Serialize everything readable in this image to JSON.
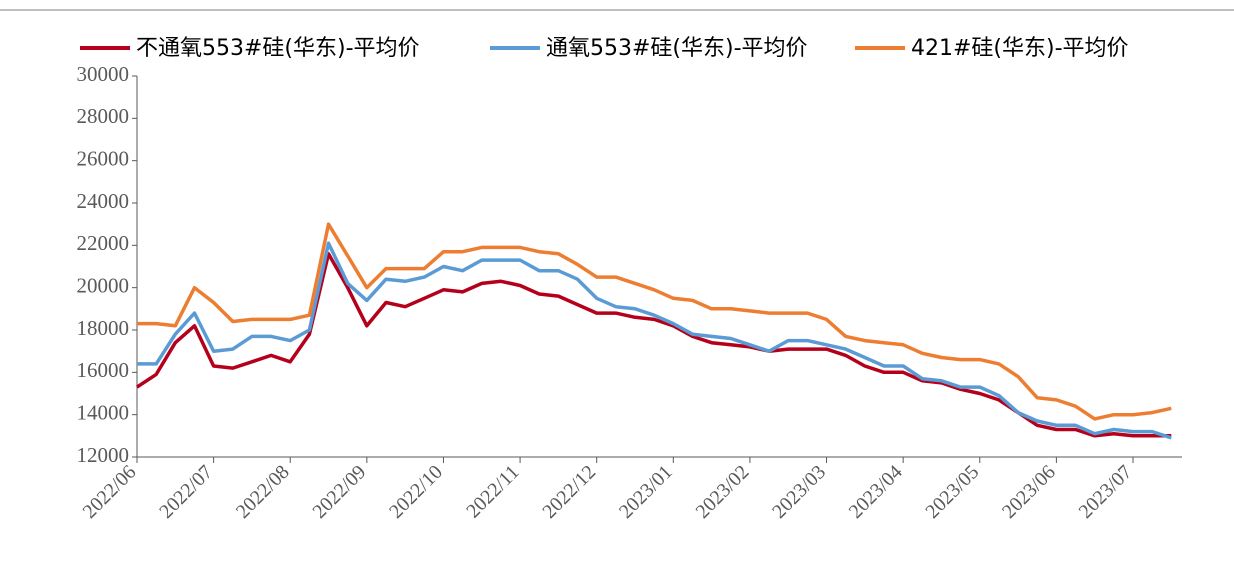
{
  "chart_data": {
    "type": "line",
    "categories": [
      "2022/06",
      null,
      null,
      null,
      "2022/07",
      null,
      null,
      null,
      "2022/08",
      null,
      null,
      null,
      "2022/09",
      null,
      null,
      null,
      "2022/10",
      null,
      null,
      null,
      "2022/11",
      null,
      null,
      null,
      "2022/12",
      null,
      null,
      null,
      "2023/01",
      null,
      null,
      null,
      "2023/02",
      null,
      null,
      null,
      "2023/03",
      null,
      null,
      null,
      "2023/04",
      null,
      null,
      null,
      "2023/05",
      null,
      null,
      null,
      "2023/06",
      null,
      null,
      null,
      "2023/07",
      null,
      null
    ],
    "series": [
      {
        "name": "不通氧553#硅(华东)-平均价",
        "color": "#b5001c",
        "values": [
          15300,
          15900,
          17400,
          18200,
          16300,
          16200,
          16500,
          16800,
          16500,
          17800,
          21600,
          20000,
          18200,
          19300,
          19100,
          19500,
          19900,
          19800,
          20200,
          20300,
          20100,
          19700,
          19600,
          19200,
          18800,
          18800,
          18600,
          18500,
          18200,
          17700,
          17400,
          17300,
          17200,
          17000,
          17100,
          17100,
          17100,
          16800,
          16300,
          16000,
          16000,
          15600,
          15500,
          15200,
          15000,
          14700,
          14100,
          13500,
          13300,
          13300,
          13000,
          13100,
          13000,
          13000,
          13000
        ]
      },
      {
        "name": "通氧553#硅(华东)-平均价",
        "color": "#5b9bd5",
        "values": [
          16400,
          16400,
          17800,
          18800,
          17000,
          17100,
          17700,
          17700,
          17500,
          18000,
          22100,
          20200,
          19400,
          20400,
          20300,
          20500,
          21000,
          20800,
          21300,
          21300,
          21300,
          20800,
          20800,
          20400,
          19500,
          19100,
          19000,
          18700,
          18300,
          17800,
          17700,
          17600,
          17300,
          17000,
          17500,
          17500,
          17300,
          17100,
          16700,
          16300,
          16300,
          15700,
          15600,
          15300,
          15300,
          14900,
          14100,
          13700,
          13500,
          13500,
          13100,
          13300,
          13200,
          13200,
          12900
        ]
      },
      {
        "name": "421#硅(华东)-平均价",
        "color": "#ed7d31",
        "values": [
          18300,
          18300,
          18200,
          20000,
          19300,
          18400,
          18500,
          18500,
          18500,
          18700,
          23000,
          21500,
          20000,
          20900,
          20900,
          20900,
          21700,
          21700,
          21900,
          21900,
          21900,
          21700,
          21600,
          21100,
          20500,
          20500,
          20200,
          19900,
          19500,
          19400,
          19000,
          19000,
          18900,
          18800,
          18800,
          18800,
          18500,
          17700,
          17500,
          17400,
          17300,
          16900,
          16700,
          16600,
          16600,
          16400,
          15800,
          14800,
          14700,
          14400,
          13800,
          14000,
          14000,
          14100,
          14300
        ]
      }
    ],
    "ylim": [
      12000,
      30000
    ],
    "yticks": [
      12000,
      14000,
      16000,
      18000,
      20000,
      22000,
      24000,
      26000,
      28000,
      30000
    ],
    "grid": false
  }
}
